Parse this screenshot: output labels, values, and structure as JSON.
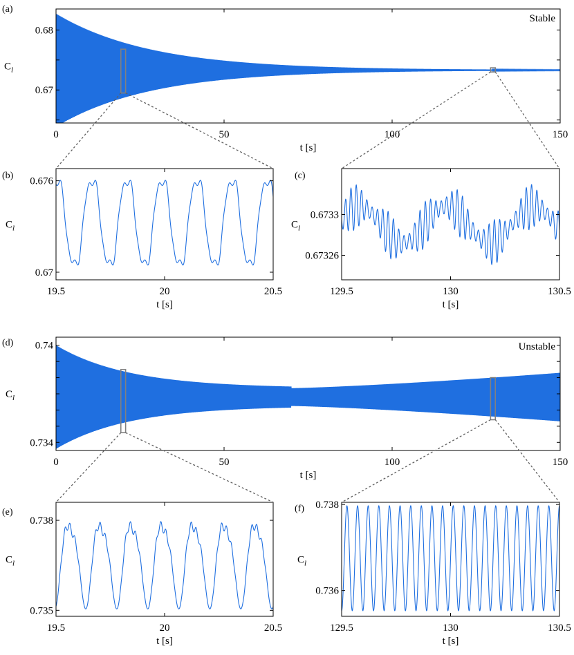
{
  "colors": {
    "signal": "#1f6fe0",
    "box": "#808080",
    "connector": "#606060",
    "axes": "#000000"
  },
  "chart_data": [
    {
      "panel": "(a)",
      "type": "line",
      "annotation": "Stable",
      "xlabel": "t [s]",
      "ylabel": "C",
      "ylabel_sub": "l",
      "xlim": [
        0,
        150
      ],
      "ylim": [
        0.6645,
        0.6835
      ],
      "xticks": [
        0,
        50,
        100,
        150
      ],
      "xtick_labels": [
        "0",
        "50",
        "100",
        "150"
      ],
      "yticks": [
        0.665,
        0.67,
        0.675,
        0.68
      ],
      "ytick_labels": [
        "",
        "0.67",
        "",
        "0.68"
      ],
      "envelope": {
        "center": 0.6733,
        "initial_half_amplitude": 0.0094,
        "decay_time_constant": 28,
        "final_half_amplitude": 2e-05
      },
      "zoom_boxes": [
        {
          "x": [
            19.5,
            20.5
          ],
          "y": [
            0.6695,
            0.6768
          ]
        },
        {
          "x": [
            129.5,
            130.5
          ],
          "y": [
            0.673,
            0.6737
          ]
        }
      ]
    },
    {
      "panel": "(b)",
      "type": "line",
      "xlabel": "t [s]",
      "ylabel": "C",
      "ylabel_sub": "l",
      "xlim": [
        19.5,
        20.5
      ],
      "ylim": [
        0.6695,
        0.6768
      ],
      "xticks": [
        19.5,
        20,
        20.5
      ],
      "xtick_labels": [
        "19.5",
        "20",
        "20.5"
      ],
      "yticks": [
        0.67,
        0.676
      ],
      "ytick_labels": [
        "0.67",
        "0.676"
      ],
      "signal": {
        "center": 0.67325,
        "amplitude": 0.0032,
        "frequency_hz": 6.2,
        "min": 0.6699,
        "max": 0.6766
      }
    },
    {
      "panel": "(c)",
      "type": "line",
      "xlabel": "t [s]",
      "ylabel": "C",
      "ylabel_sub": "l",
      "xlim": [
        129.5,
        130.5
      ],
      "ylim": [
        0.673236,
        0.673345
      ],
      "xticks": [
        129.5,
        130,
        130.5
      ],
      "xtick_labels": [
        "129.5",
        "130",
        "130.5"
      ],
      "yticks": [
        0.67326,
        0.6733
      ],
      "ytick_labels": [
        "0.67326",
        "0.6733"
      ],
      "signal": {
        "center": 0.67329,
        "slow_amplitude": 1.8e-05,
        "slow_frequency_hz": 2.5,
        "fast_amplitude": 2.2e-05,
        "fast_frequency_hz": 41
      }
    },
    {
      "panel": "(d)",
      "type": "line",
      "annotation": "Unstable",
      "xlabel": "t [s]",
      "ylabel": "C",
      "ylabel_sub": "l",
      "xlim": [
        0,
        150
      ],
      "ylim": [
        0.7335,
        0.7405
      ],
      "xticks": [
        0,
        50,
        100,
        150
      ],
      "xtick_labels": [
        "0",
        "50",
        "100",
        "150"
      ],
      "yticks": [
        0.734,
        0.735,
        0.736,
        0.737,
        0.738,
        0.739,
        0.74
      ],
      "ytick_labels": [
        "0.734",
        "",
        "",
        "",
        "",
        "",
        "0.74"
      ],
      "envelope": {
        "center": 0.7368,
        "initial_half_amplitude": 0.0032,
        "minimum_half_amplitude": 0.00055,
        "minimum_at_t": 70,
        "final_half_amplitude": 0.0015
      },
      "zoom_boxes": [
        {
          "x": [
            19.5,
            20.5
          ],
          "y": [
            0.7346,
            0.7385
          ]
        },
        {
          "x": [
            129.5,
            130.5
          ],
          "y": [
            0.7354,
            0.738
          ]
        }
      ]
    },
    {
      "panel": "(e)",
      "type": "line",
      "xlabel": "t [s]",
      "ylabel": "C",
      "ylabel_sub": "l",
      "xlim": [
        19.5,
        20.5
      ],
      "ylim": [
        0.7348,
        0.7386
      ],
      "xticks": [
        19.5,
        20,
        20.5
      ],
      "xtick_labels": [
        "19.5",
        "20",
        "20.5"
      ],
      "yticks": [
        0.735,
        0.738
      ],
      "ytick_labels": [
        "0.735",
        "0.738"
      ],
      "signal": {
        "center": 0.73665,
        "amplitude": 0.0015,
        "frequency_hz": 7.0,
        "min": 0.7349,
        "max": 0.7384
      }
    },
    {
      "panel": "(f)",
      "type": "line",
      "xlabel": "t [s]",
      "ylabel": "C",
      "ylabel_sub": "l",
      "xlim": [
        129.5,
        130.5
      ],
      "ylim": [
        0.7354,
        0.73805
      ],
      "xticks": [
        129.5,
        130,
        130.5
      ],
      "xtick_labels": [
        "129.5",
        "130",
        "130.5"
      ],
      "yticks": [
        0.736,
        0.738
      ],
      "ytick_labels": [
        "0.736",
        "0.738"
      ],
      "signal": {
        "center": 0.73675,
        "amplitude": 0.00122,
        "frequency_hz": 20.5
      }
    }
  ]
}
